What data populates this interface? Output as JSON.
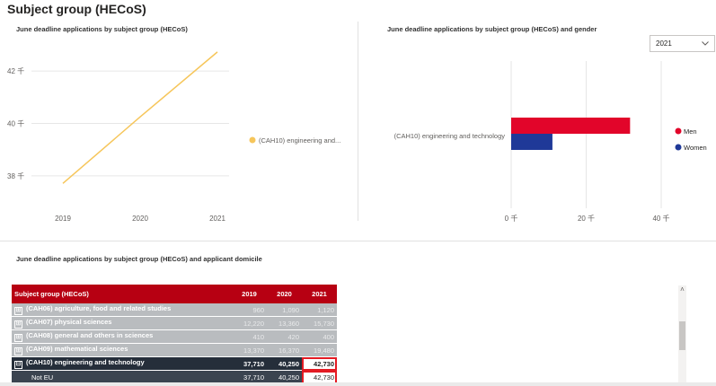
{
  "page": {
    "title": "Subject group (HECoS)"
  },
  "line_visual": {
    "title": "June deadline applications  by subject group (HECoS)",
    "legend": "(CAH10) engineering and...",
    "colors": {
      "line": "#f6c65b",
      "grid": "#e6e6e6"
    }
  },
  "bar_visual": {
    "title": "June deadline applications by subject group (HECoS) and gender",
    "category_label": "(CAH10) engineering and technology",
    "legend": {
      "men": "Men",
      "women": "Women"
    },
    "colors": {
      "men": "#e2052a",
      "women": "#1f3998"
    }
  },
  "year_filter": {
    "value": "2021",
    "chevron": "chevron-down-icon"
  },
  "table_visual": {
    "title": "June deadline applications  by subject group (HECoS) and applicant domicile",
    "headers": [
      "Subject group (HECoS)",
      "2019",
      "2020",
      "2021"
    ],
    "rows": [
      {
        "label": "(CAH06) agriculture, food and related studies",
        "expander": "⊞",
        "values": [
          "960",
          "1,090",
          "1,120"
        ],
        "style": "muted"
      },
      {
        "label": "(CAH07) physical sciences",
        "expander": "⊞",
        "values": [
          "12,220",
          "13,360",
          "15,730"
        ],
        "style": "muted"
      },
      {
        "label": "(CAH08) general and others in sciences",
        "expander": "⊞",
        "values": [
          "410",
          "420",
          "400"
        ],
        "style": "muted"
      },
      {
        "label": "(CAH09) mathematical sciences",
        "expander": "⊞",
        "values": [
          "13,370",
          "16,370",
          "19,480"
        ],
        "style": "muted"
      },
      {
        "label": "(CAH10) engineering and technology",
        "expander": "⊟",
        "values": [
          "37,710",
          "40,250",
          "42,730"
        ],
        "style": "selected"
      },
      {
        "label": "Not EU",
        "expander": "",
        "values": [
          "37,710",
          "40,250",
          "42,730"
        ],
        "style": "child"
      }
    ],
    "scroll_up": "˄"
  },
  "chart_data": [
    {
      "type": "line",
      "title": "June deadline applications  by subject group (HECoS)",
      "x": [
        "2019",
        "2020",
        "2021"
      ],
      "series": [
        {
          "name": "(CAH10) engineering and...",
          "values": [
            37710,
            40250,
            42730
          ]
        }
      ],
      "ylim": [
        37000,
        43000
      ],
      "yticks": [
        38000,
        40000,
        42000
      ],
      "ytick_labels": [
        "38 千",
        "40 千",
        "42 千"
      ],
      "grid": true,
      "legend_position": "right"
    },
    {
      "type": "bar",
      "orientation": "horizontal",
      "title": "June deadline applications by subject group (HECoS) and gender",
      "categories": [
        "(CAH10) engineering and technology"
      ],
      "series": [
        {
          "name": "Men",
          "values": [
            31700
          ]
        },
        {
          "name": "Women",
          "values": [
            11000
          ]
        }
      ],
      "xlim": [
        0,
        40000
      ],
      "xticks": [
        0,
        20000,
        40000
      ],
      "xtick_labels": [
        "0 千",
        "20 千",
        "40 千"
      ],
      "grid": true,
      "legend_position": "right"
    }
  ]
}
